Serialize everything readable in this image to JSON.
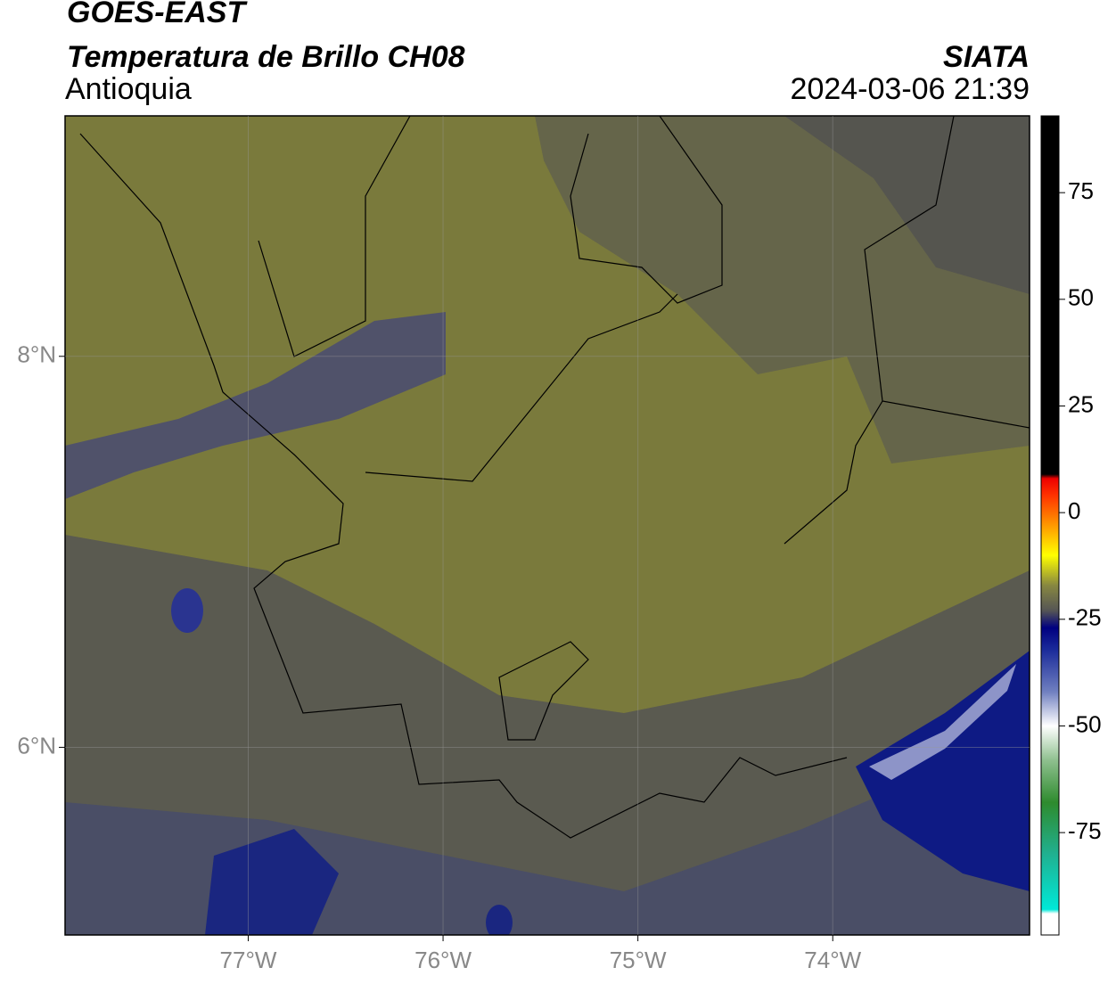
{
  "header": {
    "title": "GOES-EAST",
    "subtitle": "Temperatura de Brillo CH08",
    "source": "SIATA",
    "region": "Antioquia",
    "datetime": "2024-03-06 21:39"
  },
  "map": {
    "xlim": [
      -77.94,
      -72.99
    ],
    "ylim": [
      5.04,
      9.23
    ],
    "xticks": [
      {
        "value": -77,
        "label": "77°W"
      },
      {
        "value": -76,
        "label": "76°W"
      },
      {
        "value": -75,
        "label": "75°W"
      },
      {
        "value": -74,
        "label": "74°W"
      }
    ],
    "yticks": [
      {
        "value": 6,
        "label": "6°N"
      },
      {
        "value": 8,
        "label": "8°N"
      }
    ],
    "grid": true
  },
  "colorbar": {
    "lim": [
      -99,
      93
    ],
    "ticks": [
      -75,
      -50,
      -25,
      0,
      25,
      50,
      75
    ],
    "stops": [
      {
        "value": -99,
        "color": "#ffffff"
      },
      {
        "value": -94,
        "color": "#ffffff"
      },
      {
        "value": -93,
        "color": "#00e8d8"
      },
      {
        "value": -80,
        "color": "#20b090"
      },
      {
        "value": -68,
        "color": "#2e8b2e"
      },
      {
        "value": -58,
        "color": "#8fc08f"
      },
      {
        "value": -50,
        "color": "#ffffff"
      },
      {
        "value": -42,
        "color": "#7080c0"
      },
      {
        "value": -32,
        "color": "#1a2a9a"
      },
      {
        "value": -27,
        "color": "#000080"
      },
      {
        "value": -23,
        "color": "#555555"
      },
      {
        "value": -17,
        "color": "#888840"
      },
      {
        "value": -10,
        "color": "#ffff00"
      },
      {
        "value": -3,
        "color": "#ff9900"
      },
      {
        "value": 4,
        "color": "#ff3300"
      },
      {
        "value": 8,
        "color": "#ee0000"
      },
      {
        "value": 9,
        "color": "#000000"
      },
      {
        "value": 93,
        "color": "#000000"
      }
    ]
  }
}
